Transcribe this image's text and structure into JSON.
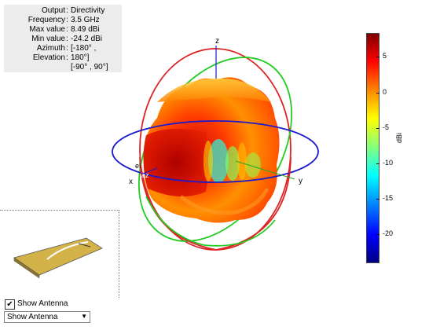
{
  "info": {
    "output_label": "Output",
    "output_value": "Directivity",
    "frequency_label": "Frequency",
    "frequency_value": "3.5 GHz",
    "max_label": "Max value",
    "max_value": "8.49 dBi",
    "min_label": "Min value",
    "min_value": "-24.2 dBi",
    "azimuth_label": "Azimuth",
    "azimuth_value": "[-180° ,",
    "elevation_label": "Elevation",
    "elevation_value": "180°]",
    "elevation_value_2": "[-90° , 90°]"
  },
  "axes": {
    "x": "x",
    "y": "y",
    "z": "z",
    "el": "el",
    "az": "az"
  },
  "colorbar": {
    "unit": "dBi",
    "ticks": [
      "5",
      "0",
      "-5",
      "-10",
      "-15",
      "-20"
    ],
    "colors": [
      "#800000",
      "#ff0000",
      "#ff8000",
      "#ffff00",
      "#80ff80",
      "#00ffff",
      "#0080ff",
      "#0000ff",
      "#000080"
    ]
  },
  "controls": {
    "show_antenna_label": "Show Antenna",
    "show_antenna_checked": true,
    "dropdown_value": "Show Antenna"
  },
  "colors": {
    "azimuth_circle": "#1a1acc",
    "elevation_circle_green": "#22cc22",
    "elevation_circle_red": "#dd2222",
    "z_axis": "#1a1acc",
    "antenna_fill": "#d4b24a"
  }
}
